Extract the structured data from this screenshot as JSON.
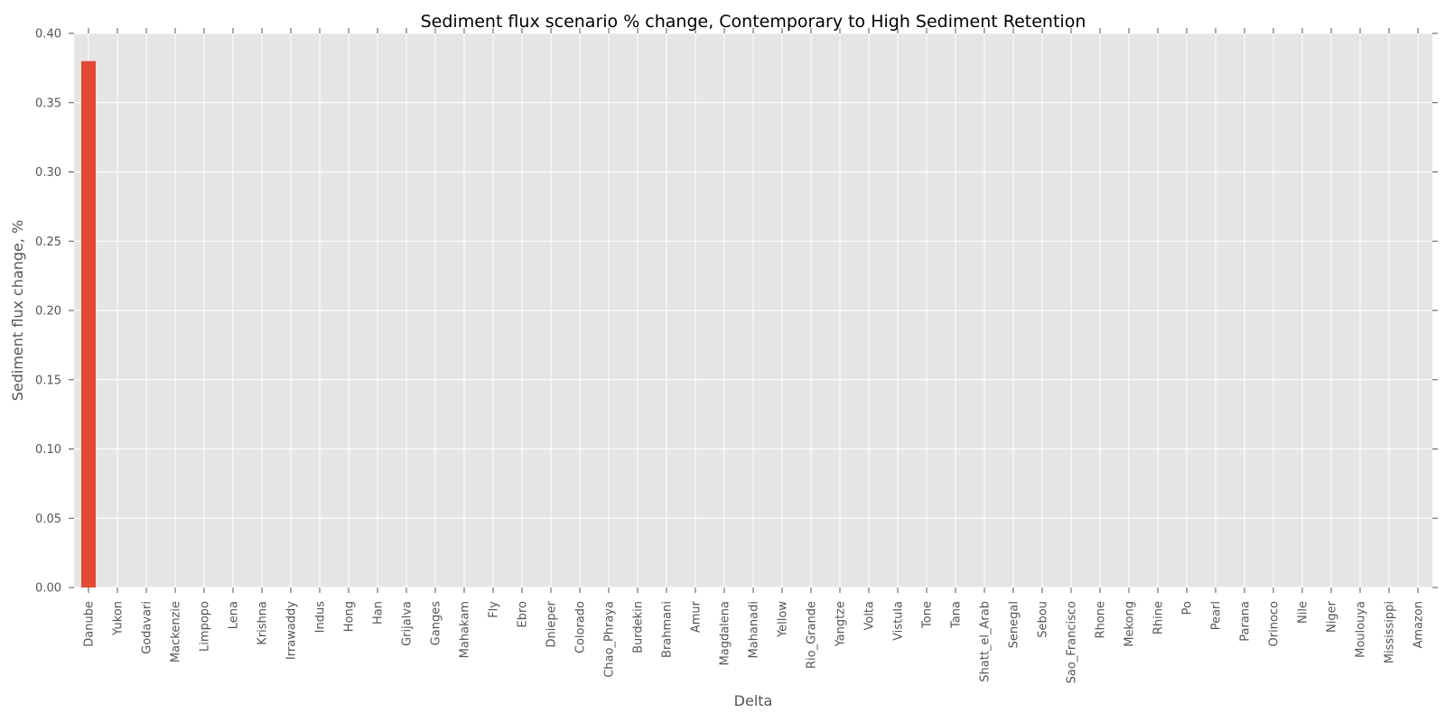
{
  "chart_data": {
    "type": "bar",
    "title": "Sediment flux scenario % change, Contemporary to High Sediment Retention",
    "xlabel": "Delta",
    "ylabel": "Sediment flux change, %",
    "ylim": [
      0,
      0.4
    ],
    "yticks": [
      "0.00",
      "0.05",
      "0.10",
      "0.15",
      "0.20",
      "0.25",
      "0.30",
      "0.35",
      "0.40"
    ],
    "grid": true,
    "categories": [
      "Danube",
      "Yukon",
      "Godavari",
      "Mackenzie",
      "Limpopo",
      "Lena",
      "Krishna",
      "Irrawaddy",
      "Indus",
      "Hong",
      "Han",
      "Grijalva",
      "Ganges",
      "Mahakam",
      "Fly",
      "Ebro",
      "Dnieper",
      "Colorado",
      "Chao_Phraya",
      "Burdekin",
      "Brahmani",
      "Amur",
      "Magdalena",
      "Mahanadi",
      "Yellow",
      "Rio_Grande",
      "Yangtze",
      "Volta",
      "Vistula",
      "Tone",
      "Tana",
      "Shatt_el_Arab",
      "Senegal",
      "Sebou",
      "Sao_Francisco",
      "Rhone",
      "Mekong",
      "Rhine",
      "Po",
      "Pearl",
      "Parana",
      "Orinoco",
      "Nile",
      "Niger",
      "Moulouya",
      "Mississippi",
      "Amazon"
    ],
    "values": [
      0.38,
      0,
      0,
      0,
      0,
      0,
      0,
      0,
      0,
      0,
      0,
      0,
      0,
      0,
      0,
      0,
      0,
      0,
      0,
      0,
      0,
      0,
      0,
      0,
      0,
      0,
      0,
      0,
      0,
      0,
      0,
      0,
      0,
      0,
      0,
      0,
      0,
      0,
      0,
      0,
      0,
      0,
      0,
      0,
      0,
      0,
      0
    ],
    "bar_color": "#e24a33",
    "background_color": "#e5e5e5",
    "grid_color": "#ffffff"
  }
}
